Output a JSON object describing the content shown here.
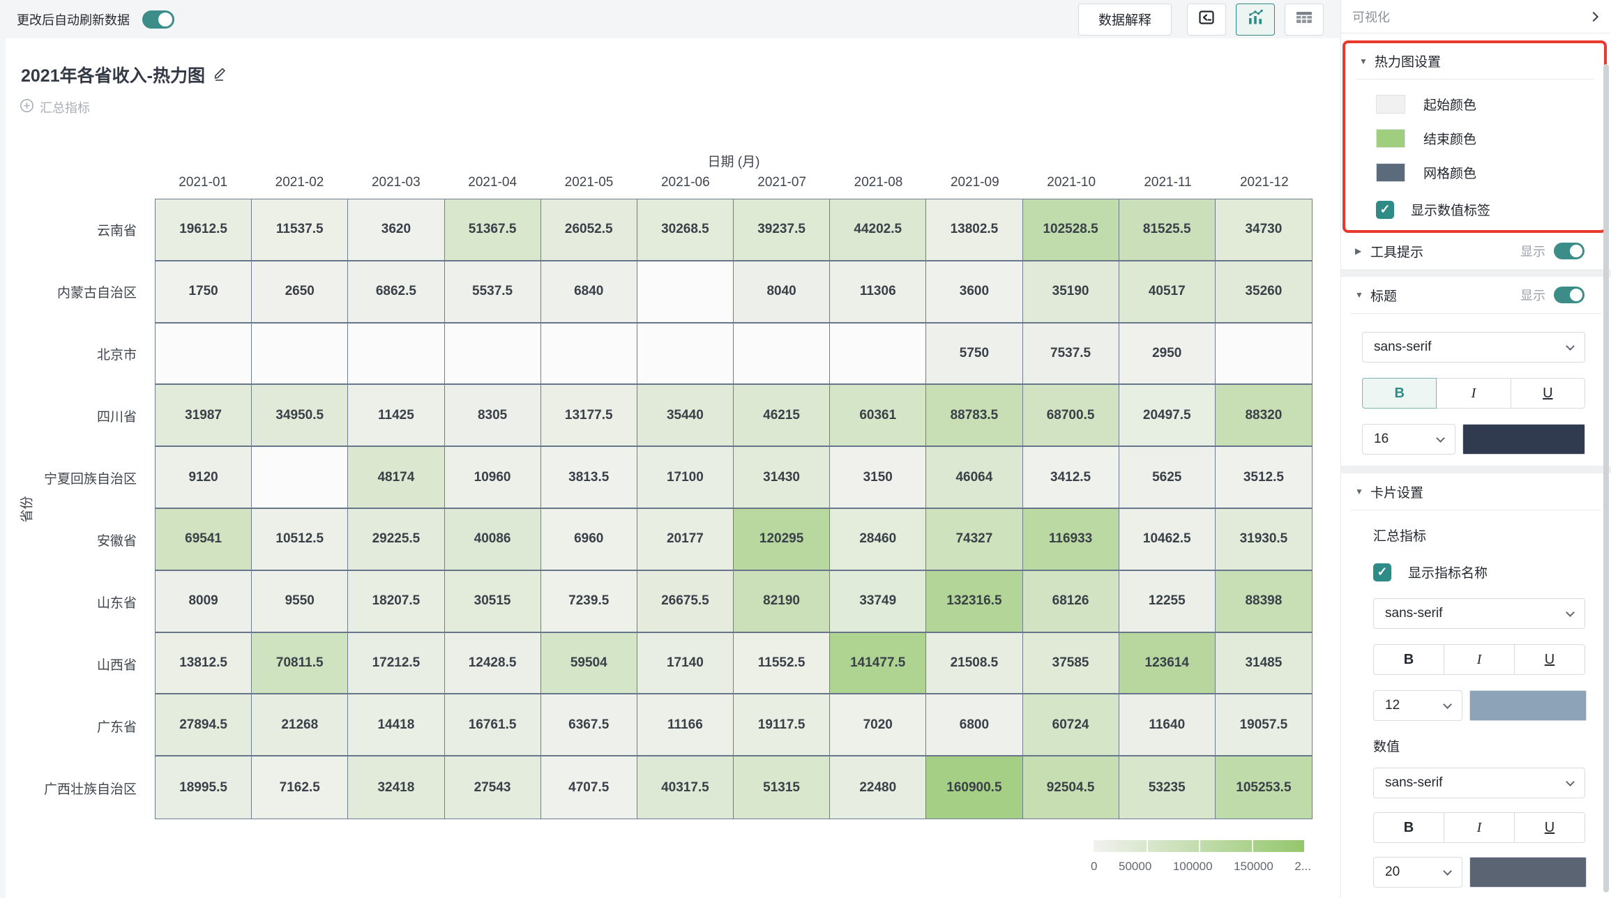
{
  "topbar": {
    "auto_refresh_label": "更改后自动刷新数据",
    "data_explain_label": "数据解释"
  },
  "chart": {
    "title": "2021年各省收入-热力图",
    "summary_indicator_label": "汇总指标"
  },
  "chart_data": {
    "type": "heatmap",
    "title": "2021年各省收入-热力图",
    "xlabel": "日期 (月)",
    "ylabel": "省份",
    "x": [
      "2021-01",
      "2021-02",
      "2021-03",
      "2021-04",
      "2021-05",
      "2021-06",
      "2021-07",
      "2021-08",
      "2021-09",
      "2021-10",
      "2021-11",
      "2021-12"
    ],
    "y": [
      "云南省",
      "内蒙古自治区",
      "北京市",
      "四川省",
      "宁夏回族自治区",
      "安徽省",
      "山东省",
      "山西省",
      "广东省",
      "广西壮族自治区"
    ],
    "values": [
      [
        19612.5,
        11537.5,
        3620,
        51367.5,
        26052.5,
        30268.5,
        39237.5,
        44202.5,
        13802.5,
        102528.5,
        81525.5,
        34730
      ],
      [
        1750,
        2650,
        6862.5,
        5537.5,
        6840,
        null,
        8040,
        11306,
        3600,
        35190,
        40517,
        35260
      ],
      [
        null,
        null,
        null,
        null,
        null,
        null,
        null,
        null,
        5750,
        7537.5,
        2950,
        null
      ],
      [
        31987,
        34950.5,
        11425,
        8305,
        13177.5,
        35440,
        46215,
        60361,
        88783.5,
        68700.5,
        20497.5,
        88320
      ],
      [
        9120,
        null,
        48174,
        10960,
        3813.5,
        17100,
        31430,
        3150,
        46064,
        3412.5,
        5625,
        3512.5
      ],
      [
        69541,
        10512.5,
        29225.5,
        40086,
        6960,
        20177,
        120295,
        28460,
        74327,
        116933,
        10462.5,
        31930.5
      ],
      [
        8009,
        9550,
        18207.5,
        30515,
        7239.5,
        26675.5,
        82190,
        33749,
        132316.5,
        68126,
        12255,
        88398
      ],
      [
        13812.5,
        70811.5,
        17212.5,
        12428.5,
        59504,
        17140,
        11552.5,
        141477.5,
        21508.5,
        37585,
        123614,
        31485
      ],
      [
        27894.5,
        21268,
        14418,
        16761.5,
        6367.5,
        11166,
        19117.5,
        7020,
        6800,
        60724,
        11640,
        19057.5
      ],
      [
        18995.5,
        7162.5,
        32418,
        27543,
        4707.5,
        40317.5,
        51315,
        22480,
        160900.5,
        92504.5,
        53235,
        105253.5
      ]
    ],
    "color_scale": {
      "min": 0,
      "max": 200000,
      "start_color": "#f1f2ef",
      "end_color": "#94c76c",
      "empty_color": "#fafbfa",
      "grid_line_color": "#6d7c90"
    },
    "legend_ticks": [
      "0",
      "50000",
      "100000",
      "150000",
      "2..."
    ],
    "legend_position": "bottom-right",
    "value_labels_shown": true
  },
  "sidebar": {
    "header": "可视化",
    "accent_color": "#2e8b85",
    "highlight_border_color": "#e83b2d",
    "heatmap_settings": {
      "title": "热力图设置",
      "rows": [
        {
          "label": "起始颜色",
          "color": "#f0f1f0"
        },
        {
          "label": "结束颜色",
          "color": "#9fce7e"
        },
        {
          "label": "网格颜色",
          "color": "#5c6b7c"
        }
      ],
      "show_value_labels": {
        "label": "显示数值标签",
        "checked": true,
        "checkmark": "✓"
      }
    },
    "tooltip_section": {
      "title": "工具提示",
      "show_label": "显示",
      "enabled": true
    },
    "title_section": {
      "title": "标题",
      "show_label": "显示",
      "enabled": true,
      "font_family": "sans-serif",
      "bold_label": "B",
      "italic_label": "I",
      "underline_label": "U",
      "font_size": "16",
      "font_color": "#313b4f"
    },
    "card_settings": {
      "title": "卡片设置",
      "summary_label": "汇总指标",
      "show_name_checkbox": {
        "label": "显示指标名称",
        "checked": true,
        "checkmark": "✓"
      },
      "name_font_family": "sans-serif",
      "name_font_size": "12",
      "name_color": "#8ca3b8",
      "value_label": "数值",
      "value_font_family": "sans-serif",
      "value_font_size": "20",
      "value_color": "#5a6472",
      "bold_label": "B",
      "italic_label": "I",
      "underline_label": "U"
    }
  }
}
